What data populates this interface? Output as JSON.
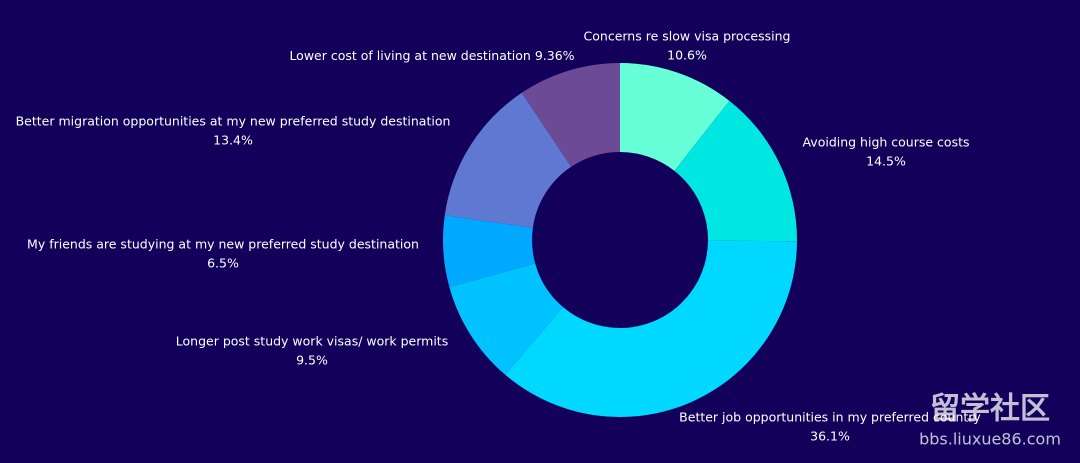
{
  "chart_data": {
    "type": "donut",
    "categories": [
      "Concerns re slow visa processing",
      "Avoiding high course costs",
      "Better job opportunities in my preferred country",
      "Longer post study work visas/ work permits",
      "My friends are studying at my new preferred study destination",
      "Better migration opportunities at my new preferred study destination",
      "Lower cost of living at new destination"
    ],
    "values": [
      10.6,
      14.5,
      36.1,
      9.5,
      6.5,
      13.4,
      9.36
    ],
    "value_labels": [
      "10.6%",
      "14.5%",
      "36.1%",
      "9.5%",
      "6.5%",
      "13.4%",
      "9.36%"
    ],
    "colors": [
      "#66ffd8",
      "#00e6e0",
      "#00d8ff",
      "#00c2ff",
      "#00a8ff",
      "#5f78d2",
      "#6d4a96"
    ],
    "watermark": [
      "留学社区",
      "bbs.liuxue86.com"
    ]
  }
}
